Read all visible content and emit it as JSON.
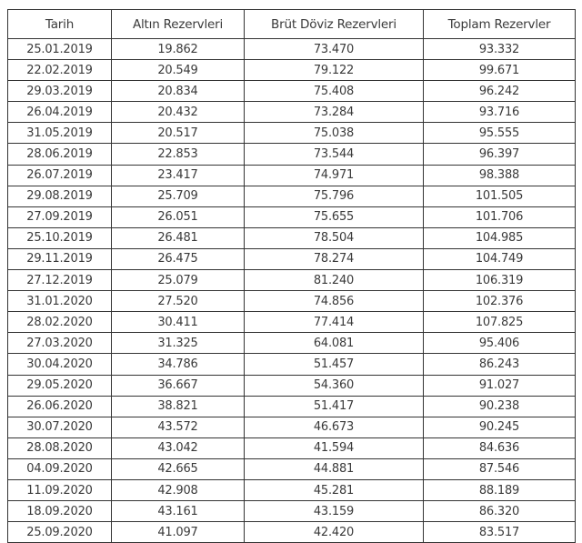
{
  "table": {
    "headers": [
      "Tarih",
      "Altın Rezervleri",
      "Brüt Döviz Rezervleri",
      "Toplam Rezervler"
    ],
    "rows": [
      [
        "25.01.2019",
        "19.862",
        "73.470",
        "93.332"
      ],
      [
        "22.02.2019",
        "20.549",
        "79.122",
        "99.671"
      ],
      [
        "29.03.2019",
        "20.834",
        "75.408",
        "96.242"
      ],
      [
        "26.04.2019",
        "20.432",
        "73.284",
        "93.716"
      ],
      [
        "31.05.2019",
        "20.517",
        "75.038",
        "95.555"
      ],
      [
        "28.06.2019",
        "22.853",
        "73.544",
        "96.397"
      ],
      [
        "26.07.2019",
        "23.417",
        "74.971",
        "98.388"
      ],
      [
        "29.08.2019",
        "25.709",
        "75.796",
        "101.505"
      ],
      [
        "27.09.2019",
        "26.051",
        "75.655",
        "101.706"
      ],
      [
        "25.10.2019",
        "26.481",
        "78.504",
        "104.985"
      ],
      [
        "29.11.2019",
        "26.475",
        "78.274",
        "104.749"
      ],
      [
        "27.12.2019",
        "25.079",
        "81.240",
        "106.319"
      ],
      [
        "31.01.2020",
        "27.520",
        "74.856",
        "102.376"
      ],
      [
        "28.02.2020",
        "30.411",
        "77.414",
        "107.825"
      ],
      [
        "27.03.2020",
        "31.325",
        "64.081",
        "95.406"
      ],
      [
        "30.04.2020",
        "34.786",
        "51.457",
        "86.243"
      ],
      [
        "29.05.2020",
        "36.667",
        "54.360",
        "91.027"
      ],
      [
        "26.06.2020",
        "38.821",
        "51.417",
        "90.238"
      ],
      [
        "30.07.2020",
        "43.572",
        "46.673",
        "90.245"
      ],
      [
        "28.08.2020",
        "43.042",
        "41.594",
        "84.636"
      ],
      [
        "04.09.2020",
        "42.665",
        "44.881",
        "87.546"
      ],
      [
        "11.09.2020",
        "42.908",
        "45.281",
        "88.189"
      ],
      [
        "18.09.2020",
        "43.161",
        "43.159",
        "86.320"
      ],
      [
        "25.09.2020",
        "41.097",
        "42.420",
        "83.517"
      ]
    ]
  }
}
